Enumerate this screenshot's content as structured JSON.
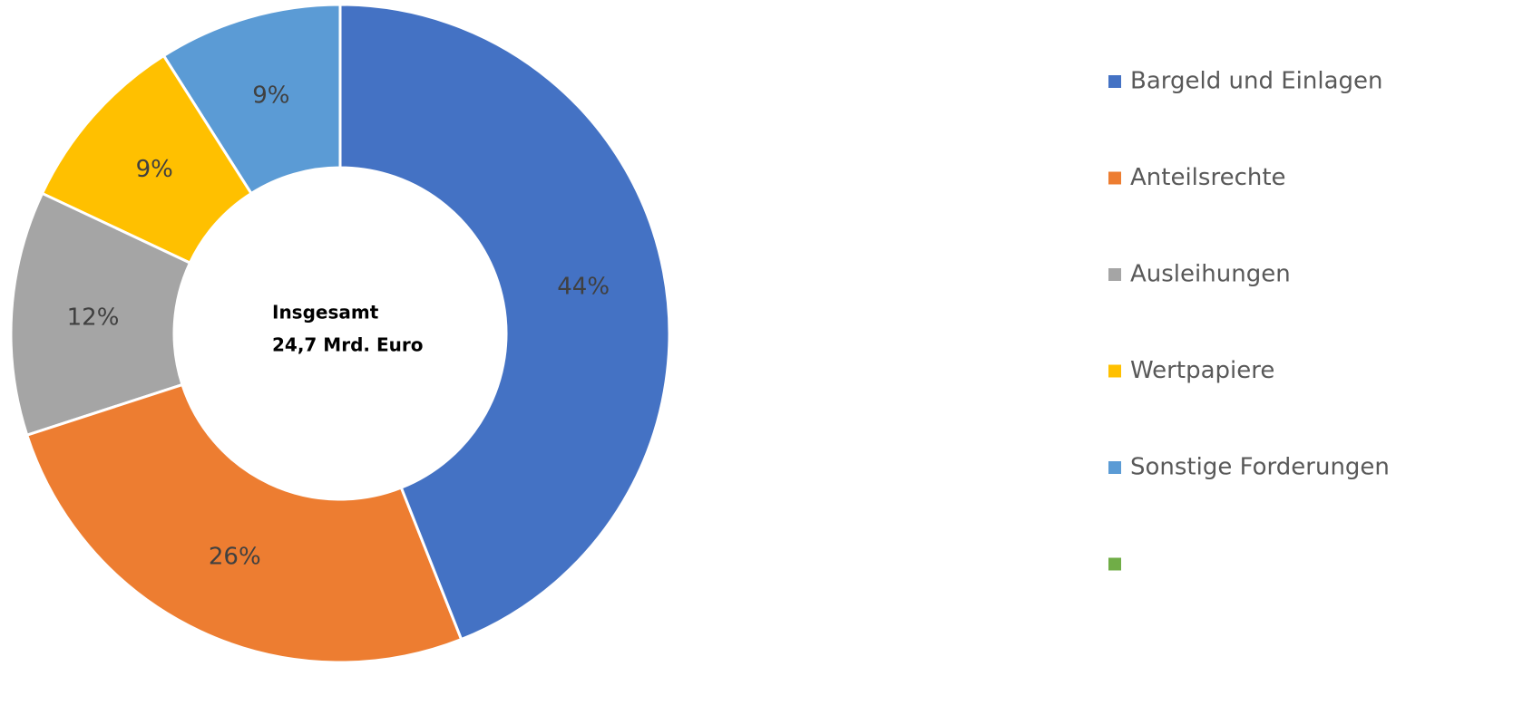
{
  "chart_data": {
    "type": "donut",
    "categories": [
      "Bargeld und Einlagen",
      "Anteilsrechte",
      "Ausleihungen",
      "Wertpapiere",
      "Sonstige Forderungen",
      null
    ],
    "values": [
      44,
      26,
      12,
      9,
      9,
      0
    ],
    "value_labels": [
      "44%",
      "26%",
      "12%",
      "9%",
      "9%",
      null
    ],
    "colors": [
      "#4472c4",
      "#ed7d31",
      "#a5a5a5",
      "#ffc000",
      "#5b9bd5",
      "#70ad47"
    ],
    "center_label": [
      "Insgesamt",
      "24,7 Mrd. Euro"
    ],
    "legend": "right"
  }
}
